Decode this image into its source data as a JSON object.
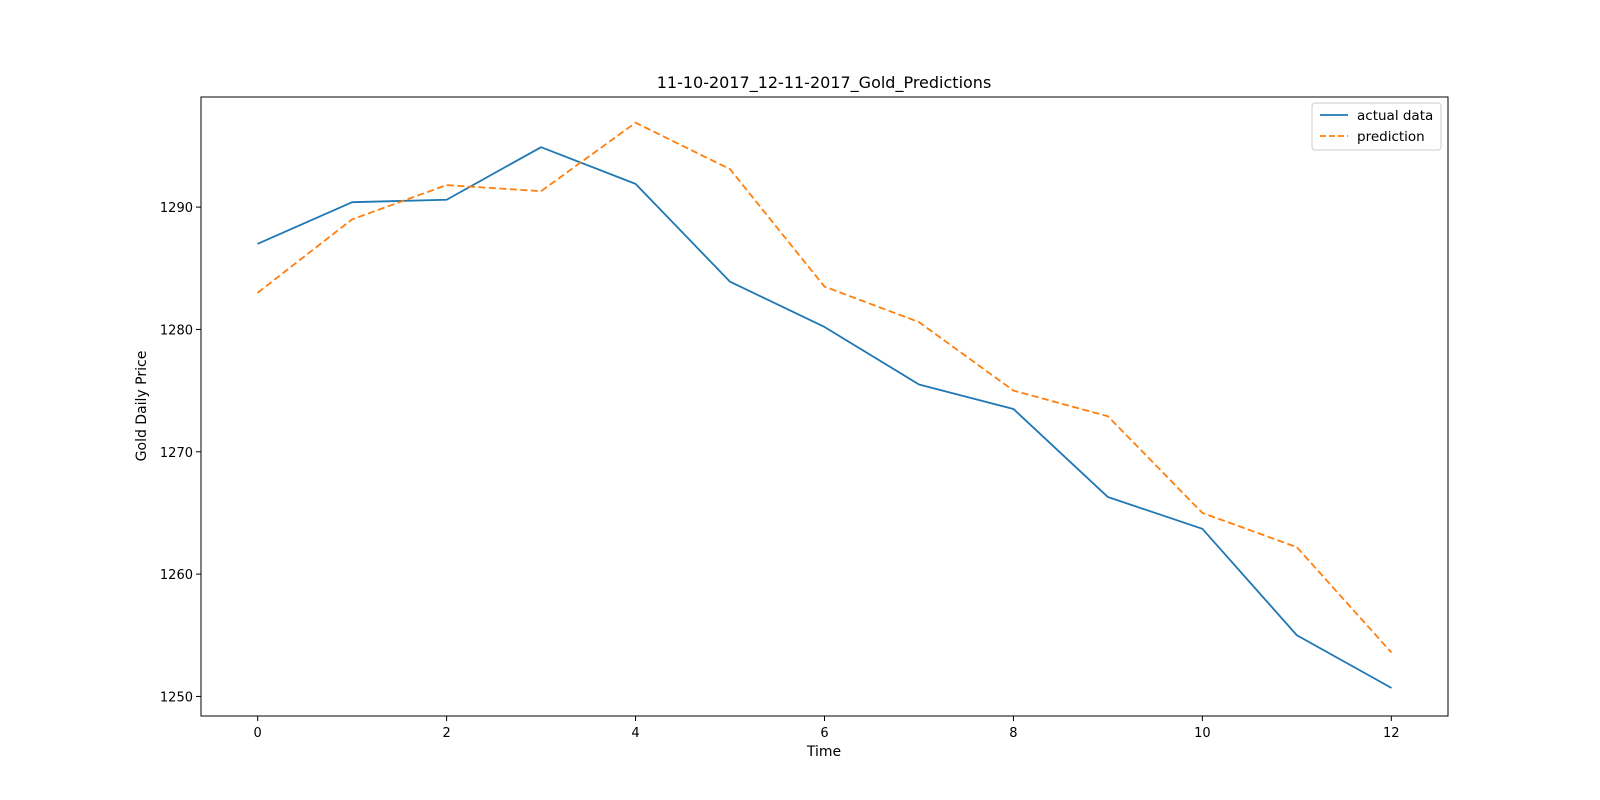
{
  "chart_data": {
    "type": "line",
    "title": "11-10-2017_12-11-2017_Gold_Predictions",
    "xlabel": "Time",
    "ylabel": "Gold Daily Price",
    "x": [
      0,
      1,
      2,
      3,
      4,
      5,
      6,
      7,
      8,
      9,
      10,
      11,
      12
    ],
    "xlim": [
      -0.6,
      12.6
    ],
    "ylim": [
      1248.4,
      1299.0
    ],
    "xticks": [
      0,
      2,
      4,
      6,
      8,
      10,
      12
    ],
    "yticks": [
      1250,
      1260,
      1270,
      1280,
      1290
    ],
    "grid": false,
    "legend_position": "top-right",
    "series": [
      {
        "name": "actual data",
        "color": "#1f77b4",
        "style": "solid",
        "values": [
          1287.0,
          1290.4,
          1290.6,
          1294.9,
          1291.9,
          1283.9,
          1280.2,
          1275.5,
          1273.5,
          1266.3,
          1263.7,
          1255.0,
          1250.7
        ]
      },
      {
        "name": "prediction",
        "color": "#ff7f0e",
        "style": "dashed",
        "values": [
          1283.0,
          1289.0,
          1291.8,
          1291.3,
          1296.9,
          1293.1,
          1283.5,
          1280.6,
          1275.0,
          1272.9,
          1265.0,
          1262.2,
          1253.6
        ]
      }
    ]
  }
}
